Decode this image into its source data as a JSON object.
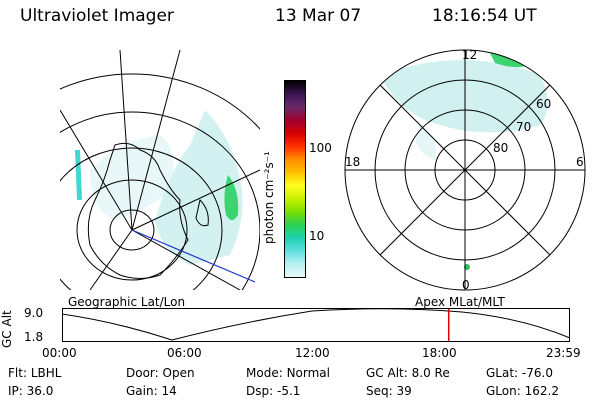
{
  "header": {
    "instrument": "Ultraviolet Imager",
    "date": "13 Mar 07",
    "time": "18:16:54 UT"
  },
  "colorbar": {
    "unit_label": "photon cm⁻²s⁻¹",
    "tick_labels": [
      "100",
      "10"
    ],
    "colors": [
      "#000000",
      "#3a1450",
      "#6a2a6a",
      "#a00030",
      "#d40000",
      "#ff3000",
      "#ff8c00",
      "#ffbe00",
      "#ffff20",
      "#c8f000",
      "#78e000",
      "#2cd050",
      "#20d0b0",
      "#60e0e0",
      "#b8f0f0",
      "#e8fafa"
    ]
  },
  "geo_panel": {
    "label": "Geographic Lat/Lon"
  },
  "apex_panel": {
    "label": "Apex MLat/MLT",
    "mlt_labels": {
      "top": "12",
      "left": "18",
      "right": "6",
      "bottom": "0"
    },
    "lat_labels": [
      "60",
      "70",
      "80"
    ]
  },
  "altitude_plot": {
    "ylabel": "GC Alt",
    "yticks": [
      "9.0",
      "1.8"
    ],
    "xticks": [
      "00:00",
      "06:00",
      "12:00",
      "18:00",
      "23:59"
    ],
    "current_time_marker": "18:16:54",
    "marker_color": "#e00000"
  },
  "footer": {
    "row1": [
      {
        "label": "Flt:",
        "value": "LBHL"
      },
      {
        "label": "Door:",
        "value": "Open"
      },
      {
        "label": "Mode:",
        "value": "Normal"
      },
      {
        "label": "GC Alt:",
        "value": "8.0 Re"
      },
      {
        "label": "GLat:",
        "value": "-76.0"
      }
    ],
    "row2": [
      {
        "label": "IP:",
        "value": "36.0"
      },
      {
        "label": "Gain:",
        "value": "14"
      },
      {
        "label": "Dsp:",
        "value": "-5.1"
      },
      {
        "label": "Seq:",
        "value": "39"
      },
      {
        "label": "GLon:",
        "value": "162.2"
      }
    ]
  }
}
